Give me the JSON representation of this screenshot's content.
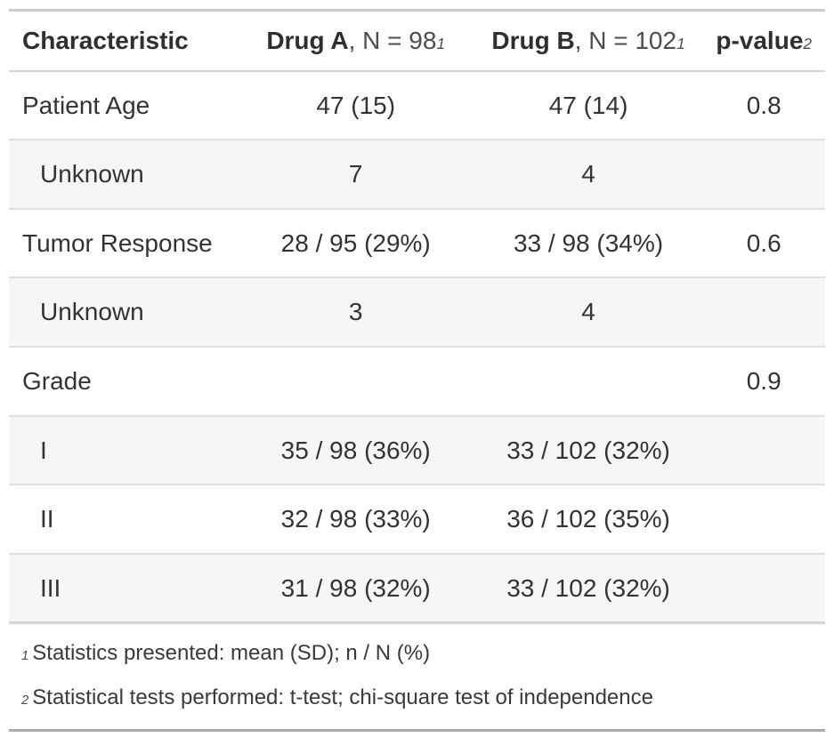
{
  "header": {
    "characteristic": "Characteristic",
    "drug_a": {
      "name": "Drug A",
      "n_part": ", N = 98",
      "footnote_mark": "1"
    },
    "drug_b": {
      "name": "Drug B",
      "n_part": ", N = 102",
      "footnote_mark": "1"
    },
    "p_value": {
      "name": "p-value",
      "footnote_mark": "2"
    }
  },
  "footnotes": [
    {
      "mark": "1",
      "text": "Statistics presented: mean (SD); n / N (%)"
    },
    {
      "mark": "2",
      "text": "Statistical tests performed: t-test; chi-square test of independence"
    }
  ],
  "colors": {
    "text": "#333333",
    "stripe": "#f6f6f6",
    "row_border": "#dfdfdf",
    "header_border": "#d5d5d5",
    "table_top_border": "#cdcdcd",
    "table_bottom_border": "#ababab"
  },
  "chart_data": {
    "type": "table",
    "title": "",
    "columns": [
      "Characteristic",
      "Drug A, N = 98",
      "Drug B, N = 102",
      "p-value"
    ],
    "column_footnote_marks": [
      "",
      "1",
      "1",
      "2"
    ],
    "rows": [
      [
        "Patient Age",
        "47 (15)",
        "47 (14)",
        "0.8"
      ],
      [
        "Unknown",
        "7",
        "4",
        ""
      ],
      [
        "Tumor Response",
        "28 / 95 (29%)",
        "33 / 98 (34%)",
        "0.6"
      ],
      [
        "Unknown",
        "3",
        "4",
        ""
      ],
      [
        "Grade",
        "",
        "",
        "0.9"
      ],
      [
        "I",
        "35 / 98 (36%)",
        "33 / 102 (32%)",
        ""
      ],
      [
        "II",
        "32 / 98 (33%)",
        "36 / 102 (35%)",
        ""
      ],
      [
        "III",
        "31 / 98 (32%)",
        "33 / 102 (32%)",
        ""
      ]
    ],
    "indented_row_indices": [
      1,
      3,
      5,
      6,
      7
    ],
    "striped_row_indices": [
      1,
      3,
      5,
      7
    ],
    "footnotes": [
      "1 Statistics presented: mean (SD); n / N (%)",
      "2 Statistical tests performed: t-test; chi-square test of independence"
    ],
    "layout_hints": {
      "value_alignment": "center",
      "label_alignment": "left",
      "stripes": true
    }
  }
}
